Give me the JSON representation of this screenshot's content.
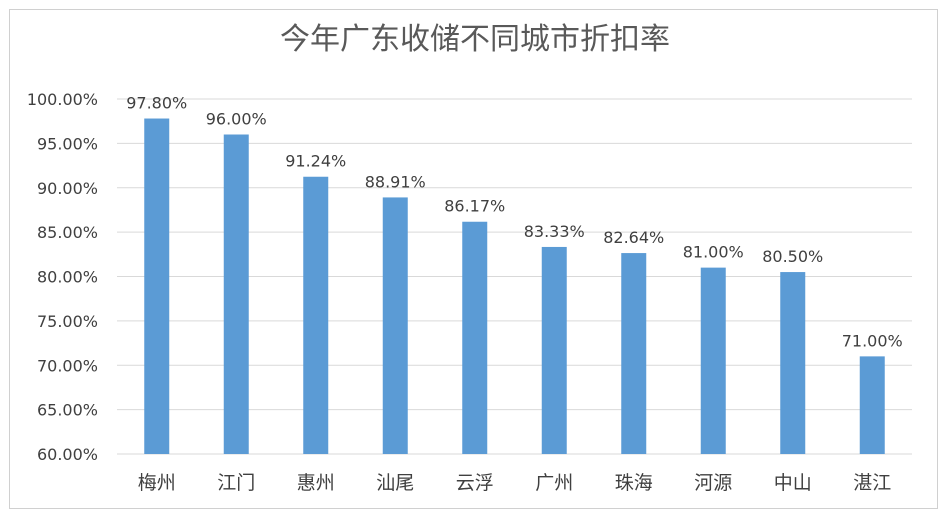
{
  "chart_data": {
    "type": "bar",
    "title": "今年广东收储不同城市折扣率",
    "categories": [
      "梅州",
      "江门",
      "惠州",
      "汕尾",
      "云浮",
      "广州",
      "珠海",
      "河源",
      "中山",
      "湛江"
    ],
    "values": [
      97.8,
      96.0,
      91.24,
      88.91,
      86.17,
      83.33,
      82.64,
      81.0,
      80.5,
      71.0
    ],
    "value_labels": [
      "97.80%",
      "96.00%",
      "91.24%",
      "88.91%",
      "86.17%",
      "83.33%",
      "82.64%",
      "81.00%",
      "80.50%",
      "71.00%"
    ],
    "ylim": [
      60,
      100
    ],
    "y_ticks": [
      60,
      65,
      70,
      75,
      80,
      85,
      90,
      95,
      100
    ],
    "y_tick_labels": [
      "60.00%",
      "65.00%",
      "70.00%",
      "75.00%",
      "80.00%",
      "85.00%",
      "90.00%",
      "95.00%",
      "100.00%"
    ],
    "xlabel": "",
    "ylabel": "",
    "grid": true,
    "legend": "none",
    "colors": {
      "bar": "#5B9BD5",
      "grid": "#d9d9d9",
      "text": "#404040",
      "title": "#595959"
    }
  }
}
